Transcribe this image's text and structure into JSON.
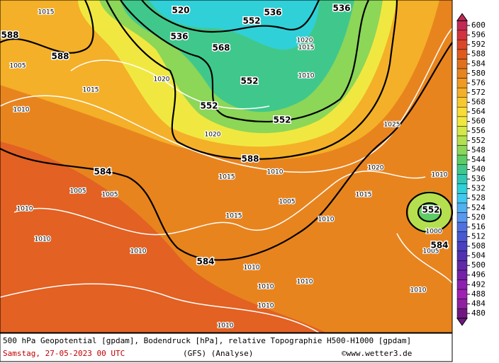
{
  "colorbar": {
    "ticks": [
      600,
      596,
      592,
      588,
      584,
      580,
      576,
      572,
      568,
      564,
      560,
      556,
      552,
      548,
      544,
      540,
      536,
      532,
      528,
      524,
      520,
      516,
      512,
      508,
      504,
      500,
      496,
      492,
      488,
      484,
      480
    ],
    "colors": [
      "#c02a55",
      "#d2333e",
      "#dc4628",
      "#e05a1e",
      "#e0701c",
      "#e8841e",
      "#f09a22",
      "#f4b028",
      "#f8c830",
      "#f8dc38",
      "#f0e840",
      "#d4e848",
      "#b4e050",
      "#8cd658",
      "#5ccc64",
      "#40c88c",
      "#30c8b4",
      "#30d0d8",
      "#40c8f0",
      "#50b0f0",
      "#5898f0",
      "#5070e0",
      "#4858d0",
      "#4840c0",
      "#5030b0",
      "#6028a8",
      "#7420a8",
      "#8c20b0",
      "#a020b4",
      "#9020a0",
      "#701880"
    ]
  },
  "contour_labels": {
    "geopotential": [
      "520",
      "536",
      "536",
      "552",
      "536",
      "568",
      "588",
      "588",
      "552",
      "552",
      "552",
      "588",
      "584",
      "584",
      "552",
      "584"
    ],
    "pressure": [
      "1015",
      "1010",
      "1005",
      "1010",
      "1010",
      "1010",
      "1010",
      "1010",
      "1010",
      "1010",
      "1010",
      "1020",
      "1025",
      "1015",
      "1005",
      "1010",
      "1015",
      "1020",
      "1015",
      "1010",
      "1000",
      "1005",
      "1010",
      "1010",
      "1005",
      "1020",
      "1015",
      "1020",
      "1010",
      "1015",
      "1005"
    ]
  },
  "footer": {
    "line1": "500 hPa Geopotential [gpdam], Bodendruck [hPa], relative Topographie H500-H1000 [gpdam]",
    "date": "Samstag, 27-05-2023  00 UTC",
    "model": "(GFS)  (Analyse)",
    "credit": "©www.wetter3.de"
  }
}
